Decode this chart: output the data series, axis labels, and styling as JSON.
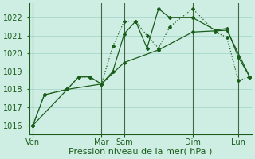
{
  "title": "Pression niveau de la mer( hPa )",
  "bg_color": "#ceeee4",
  "grid_color": "#a8d8cc",
  "line_color_dark": "#1a5c1a",
  "line_color_dotted": "#2e7d2e",
  "ylim": [
    1015.5,
    1022.8
  ],
  "yticks": [
    1016,
    1017,
    1018,
    1019,
    1020,
    1021,
    1022
  ],
  "xtick_labels": [
    "Ven",
    "Mar",
    "Sam",
    "Dim",
    "Lun"
  ],
  "xtick_positions": [
    0,
    36,
    48,
    84,
    108
  ],
  "xlim": [
    -2,
    115
  ],
  "vline_positions": [
    0,
    36,
    48,
    84,
    108
  ],
  "vline_color": "#446644",
  "xlabel_fontsize": 8,
  "ytick_fontsize": 7,
  "xtick_fontsize": 7,
  "series": [
    {
      "x": [
        0,
        6,
        18,
        24,
        30,
        36,
        42,
        48,
        54,
        60,
        66,
        72,
        84,
        96,
        102,
        108,
        114
      ],
      "y": [
        1016.0,
        1017.7,
        1018.0,
        1018.7,
        1018.7,
        1018.3,
        1020.4,
        1021.8,
        1021.8,
        1021.0,
        1020.3,
        1021.5,
        1022.5,
        1021.2,
        1020.9,
        1018.5,
        1018.7
      ],
      "style": ":",
      "marker": "D",
      "markersize": 2.0,
      "linewidth": 0.9,
      "color": "#1a5c1a"
    },
    {
      "x": [
        0,
        6,
        18,
        24,
        30,
        36,
        42,
        48,
        54,
        60,
        66,
        72,
        84,
        96,
        102,
        108,
        114
      ],
      "y": [
        1016.0,
        1017.7,
        1018.0,
        1018.7,
        1018.7,
        1018.3,
        1019.0,
        1021.1,
        1021.8,
        1020.3,
        1022.5,
        1022.0,
        1022.0,
        1021.3,
        1021.4,
        1019.8,
        1018.7
      ],
      "style": "-",
      "marker": "D",
      "markersize": 2.0,
      "linewidth": 0.9,
      "color": "#1a5c1a"
    },
    {
      "x": [
        0,
        18,
        36,
        48,
        66,
        84,
        102,
        114
      ],
      "y": [
        1016.0,
        1018.0,
        1018.3,
        1019.5,
        1020.2,
        1021.2,
        1021.3,
        1018.7
      ],
      "style": "-",
      "marker": "D",
      "markersize": 2.0,
      "linewidth": 0.9,
      "color": "#1a5c1a"
    }
  ]
}
